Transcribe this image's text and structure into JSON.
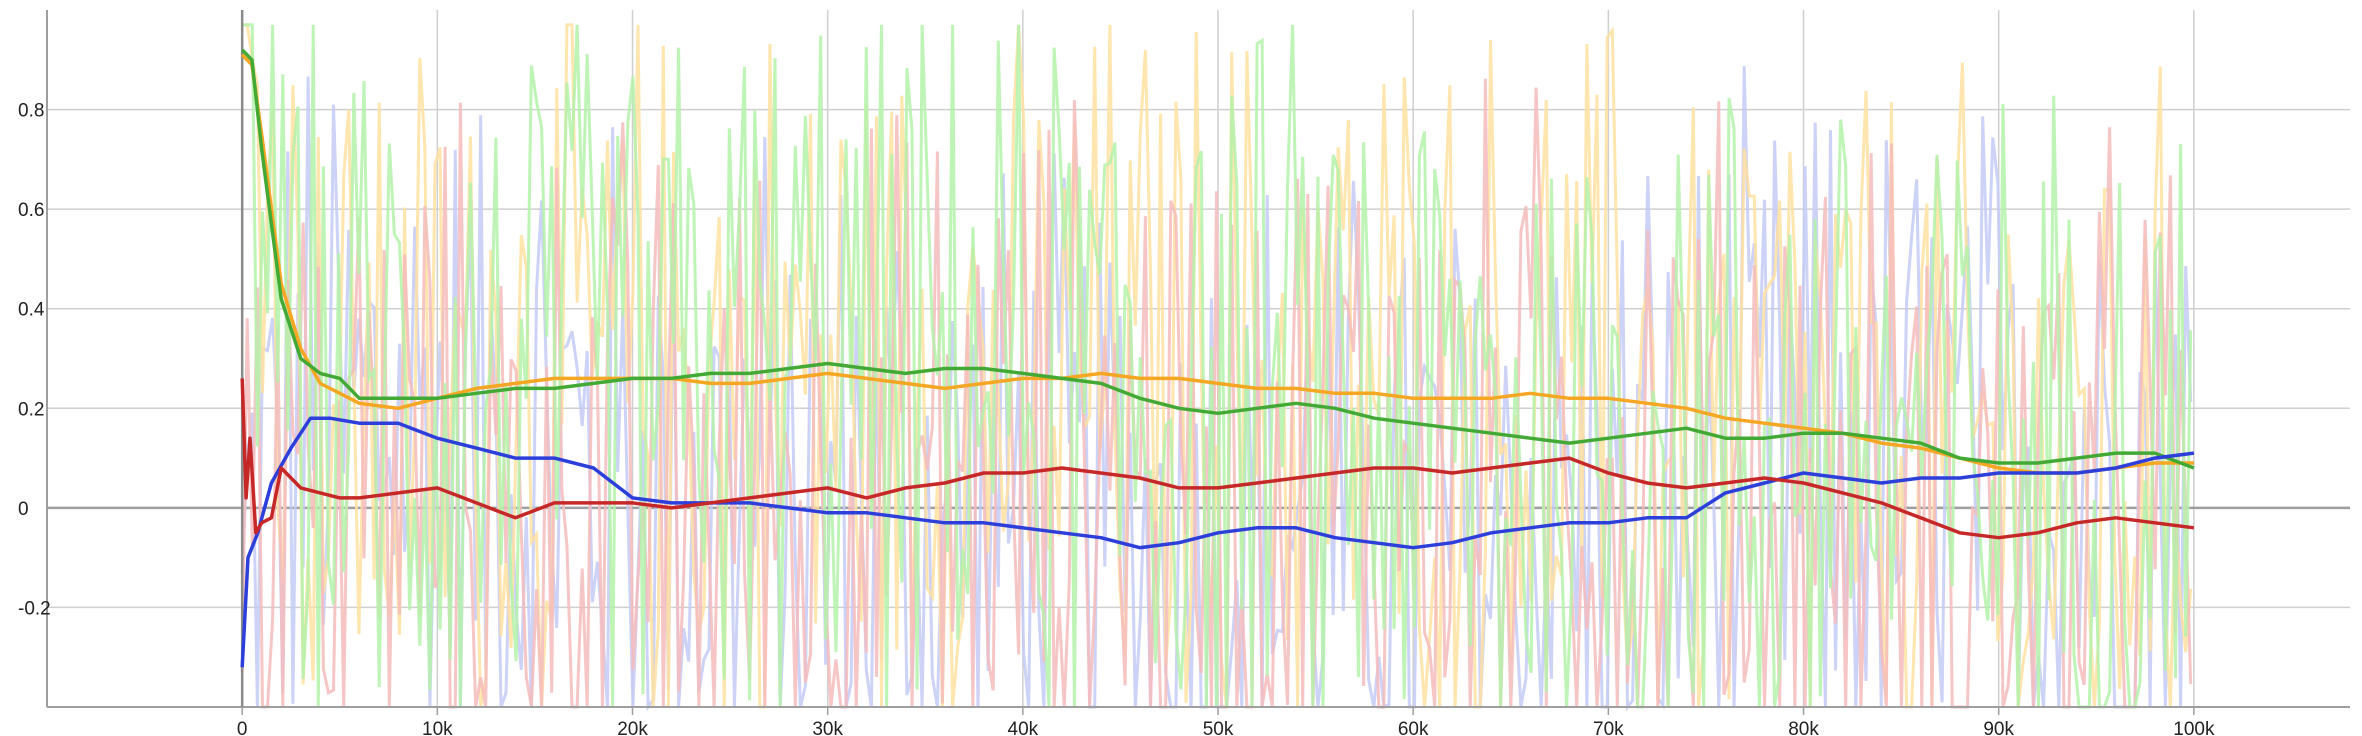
{
  "chart_data": {
    "type": "line",
    "title": "",
    "xlabel": "",
    "ylabel": "",
    "xlim": [
      -10000,
      108000
    ],
    "ylim": [
      -0.4,
      1.0
    ],
    "grid": true,
    "x_ticks": [
      0,
      10000,
      20000,
      30000,
      40000,
      50000,
      60000,
      70000,
      80000,
      90000,
      100000
    ],
    "x_tick_labels": [
      "0",
      "10k",
      "20k",
      "30k",
      "40k",
      "50k",
      "60k",
      "70k",
      "80k",
      "90k",
      "100k"
    ],
    "y_ticks": [
      -0.2,
      0,
      0.2,
      0.4,
      0.6,
      0.8
    ],
    "y_tick_labels": [
      "-0.2",
      "0",
      "0.2",
      "0.4",
      "0.6",
      "0.8"
    ],
    "series": [
      {
        "color": "#f5a623",
        "raw_color": "#ffe0a0",
        "x": [
          0,
          500,
          1000,
          2000,
          3000,
          4000,
          5000,
          6000,
          8000,
          10000,
          12000,
          14000,
          16000,
          18000,
          20000,
          22000,
          24000,
          26000,
          28000,
          30000,
          32000,
          34000,
          36000,
          38000,
          40000,
          42000,
          44000,
          46000,
          48000,
          50000,
          52000,
          54000,
          56000,
          58000,
          60000,
          62000,
          64000,
          66000,
          68000,
          70000,
          72000,
          74000,
          76000,
          78000,
          80000,
          82000,
          84000,
          86000,
          88000,
          90000,
          92000,
          94000,
          96000,
          98000,
          100000
        ],
        "values": [
          0.91,
          0.89,
          0.75,
          0.45,
          0.32,
          0.25,
          0.23,
          0.21,
          0.2,
          0.22,
          0.24,
          0.25,
          0.26,
          0.26,
          0.26,
          0.26,
          0.25,
          0.25,
          0.26,
          0.27,
          0.26,
          0.25,
          0.24,
          0.25,
          0.26,
          0.26,
          0.27,
          0.26,
          0.26,
          0.25,
          0.24,
          0.24,
          0.23,
          0.23,
          0.22,
          0.22,
          0.22,
          0.23,
          0.22,
          0.22,
          0.21,
          0.2,
          0.18,
          0.17,
          0.16,
          0.15,
          0.13,
          0.12,
          0.1,
          0.08,
          0.07,
          0.07,
          0.08,
          0.09,
          0.09
        ]
      },
      {
        "color": "#43a935",
        "raw_color": "#b4f2aa",
        "x": [
          0,
          500,
          1000,
          2000,
          3000,
          4000,
          5000,
          6000,
          8000,
          10000,
          12000,
          14000,
          16000,
          18000,
          20000,
          22000,
          24000,
          26000,
          28000,
          30000,
          32000,
          34000,
          36000,
          38000,
          40000,
          42000,
          44000,
          46000,
          48000,
          50000,
          52000,
          54000,
          56000,
          58000,
          60000,
          62000,
          64000,
          66000,
          68000,
          70000,
          72000,
          74000,
          76000,
          78000,
          80000,
          82000,
          84000,
          86000,
          88000,
          90000,
          92000,
          94000,
          96000,
          98000,
          100000
        ],
        "values": [
          0.92,
          0.9,
          0.72,
          0.42,
          0.3,
          0.27,
          0.26,
          0.22,
          0.22,
          0.22,
          0.23,
          0.24,
          0.24,
          0.25,
          0.26,
          0.26,
          0.27,
          0.27,
          0.28,
          0.29,
          0.28,
          0.27,
          0.28,
          0.28,
          0.27,
          0.26,
          0.25,
          0.22,
          0.2,
          0.19,
          0.2,
          0.21,
          0.2,
          0.18,
          0.17,
          0.16,
          0.15,
          0.14,
          0.13,
          0.14,
          0.15,
          0.16,
          0.14,
          0.14,
          0.15,
          0.15,
          0.14,
          0.13,
          0.1,
          0.09,
          0.09,
          0.1,
          0.11,
          0.11,
          0.08
        ]
      },
      {
        "color": "#2c3fdb",
        "raw_color": "#c4caf6",
        "x": [
          0,
          300,
          800,
          1500,
          2500,
          3500,
          4500,
          6000,
          8000,
          10000,
          12000,
          14000,
          16000,
          18000,
          20000,
          22000,
          24000,
          26000,
          28000,
          30000,
          32000,
          34000,
          36000,
          38000,
          40000,
          42000,
          44000,
          46000,
          48000,
          50000,
          52000,
          54000,
          56000,
          58000,
          60000,
          62000,
          64000,
          66000,
          68000,
          70000,
          72000,
          74000,
          76000,
          78000,
          80000,
          82000,
          84000,
          86000,
          88000,
          90000,
          92000,
          94000,
          96000,
          98000,
          100000
        ],
        "values": [
          -0.32,
          -0.1,
          -0.05,
          0.05,
          0.12,
          0.18,
          0.18,
          0.17,
          0.17,
          0.14,
          0.12,
          0.1,
          0.1,
          0.08,
          0.02,
          0.01,
          0.01,
          0.01,
          0.0,
          -0.01,
          -0.01,
          -0.02,
          -0.03,
          -0.03,
          -0.04,
          -0.05,
          -0.06,
          -0.08,
          -0.07,
          -0.05,
          -0.04,
          -0.04,
          -0.06,
          -0.07,
          -0.08,
          -0.07,
          -0.05,
          -0.04,
          -0.03,
          -0.03,
          -0.02,
          -0.02,
          0.03,
          0.05,
          0.07,
          0.06,
          0.05,
          0.06,
          0.06,
          0.07,
          0.07,
          0.07,
          0.08,
          0.1,
          0.11
        ]
      },
      {
        "color": "#c62828",
        "raw_color": "#f4bcbc",
        "x": [
          0,
          200,
          400,
          700,
          1000,
          1500,
          2000,
          3000,
          4000,
          5000,
          6000,
          8000,
          10000,
          12000,
          14000,
          16000,
          18000,
          20000,
          22000,
          24000,
          26000,
          28000,
          30000,
          32000,
          34000,
          36000,
          38000,
          40000,
          42000,
          44000,
          46000,
          48000,
          50000,
          52000,
          54000,
          56000,
          58000,
          60000,
          62000,
          64000,
          66000,
          68000,
          70000,
          72000,
          74000,
          76000,
          78000,
          80000,
          82000,
          84000,
          86000,
          88000,
          90000,
          92000,
          94000,
          96000,
          98000,
          100000
        ],
        "values": [
          0.26,
          0.02,
          0.14,
          -0.05,
          -0.03,
          -0.02,
          0.08,
          0.04,
          0.03,
          0.02,
          0.02,
          0.03,
          0.04,
          0.01,
          -0.02,
          0.01,
          0.01,
          0.01,
          0.0,
          0.01,
          0.02,
          0.03,
          0.04,
          0.02,
          0.04,
          0.05,
          0.07,
          0.07,
          0.08,
          0.07,
          0.06,
          0.04,
          0.04,
          0.05,
          0.06,
          0.07,
          0.08,
          0.08,
          0.07,
          0.08,
          0.09,
          0.1,
          0.07,
          0.05,
          0.04,
          0.05,
          0.06,
          0.05,
          0.03,
          0.01,
          -0.02,
          -0.05,
          -0.06,
          -0.05,
          -0.03,
          -0.02,
          -0.03,
          -0.04
        ]
      }
    ]
  }
}
